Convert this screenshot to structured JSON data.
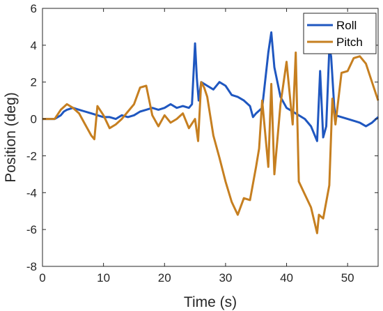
{
  "chart_data": {
    "type": "line",
    "title": "",
    "xlabel": "Time (s)",
    "ylabel": "Position (deg)",
    "xlim": [
      0,
      55
    ],
    "ylim": [
      -8,
      6
    ],
    "xticks": [
      0,
      10,
      20,
      30,
      40,
      50
    ],
    "yticks": [
      -8,
      -6,
      -4,
      -2,
      0,
      2,
      4,
      6
    ],
    "xtick_labels": [
      "0",
      "10",
      "20",
      "30",
      "40",
      "50"
    ],
    "ytick_labels": [
      "-8",
      "-6",
      "-4",
      "-2",
      "0",
      "2",
      "4",
      "6"
    ],
    "grid": false,
    "legend": "top-right",
    "series": [
      {
        "name": "Roll",
        "color": "#1f57c0",
        "x": [
          0,
          2,
          3,
          3.5,
          4,
          5,
          6,
          7,
          8,
          9,
          10,
          11,
          12,
          13,
          14,
          15,
          16,
          17,
          18,
          19,
          20,
          21,
          22,
          23,
          24,
          24.5,
          25,
          25.3,
          25.6,
          26,
          27,
          28,
          29,
          30,
          31,
          32,
          33,
          34,
          34.5,
          35,
          36,
          37,
          37.5,
          38,
          39,
          40,
          41,
          42,
          43,
          44,
          45,
          45.5,
          46,
          46.5,
          47,
          47.3,
          47.8,
          48,
          49,
          50,
          51,
          52,
          53,
          54,
          55
        ],
        "y": [
          0,
          0,
          0.2,
          0.4,
          0.5,
          0.6,
          0.5,
          0.4,
          0.3,
          0.2,
          0.1,
          0.1,
          0,
          0.2,
          0.1,
          0.2,
          0.4,
          0.5,
          0.6,
          0.5,
          0.6,
          0.8,
          0.6,
          0.7,
          0.6,
          0.8,
          4.1,
          2.2,
          1.0,
          2.0,
          1.8,
          1.6,
          2.0,
          1.8,
          1.3,
          1.2,
          1.0,
          0.7,
          0.1,
          0.3,
          0.6,
          3.6,
          4.7,
          2.8,
          1.2,
          0.6,
          0.4,
          0.2,
          0,
          -0.4,
          -1.2,
          2.6,
          -1.0,
          -0.4,
          3.8,
          3.4,
          0.7,
          0.2,
          0.1,
          0,
          -0.1,
          -0.2,
          -0.4,
          -0.2,
          0.1
        ]
      },
      {
        "name": "Pitch",
        "color": "#c67f20",
        "x": [
          0,
          2,
          3,
          4,
          5,
          6,
          7,
          8,
          8.5,
          9,
          10,
          11,
          12,
          13,
          14,
          15,
          16,
          17,
          18,
          19,
          20,
          21,
          22,
          23,
          24,
          25,
          25.5,
          26,
          26.5,
          27,
          28,
          29,
          30,
          31,
          32,
          33,
          34,
          35,
          35.5,
          36,
          37,
          37.5,
          38,
          39,
          40,
          41,
          41.5,
          42,
          43,
          44,
          45,
          45.3,
          46,
          47,
          47.5,
          48,
          49,
          50,
          51,
          52,
          53,
          54,
          55
        ],
        "y": [
          0,
          0,
          0.5,
          0.8,
          0.6,
          0.3,
          -0.3,
          -0.9,
          -1.1,
          0.7,
          0.2,
          -0.5,
          -0.3,
          0,
          0.4,
          0.8,
          1.7,
          1.8,
          0.2,
          -0.4,
          0.2,
          -0.2,
          0,
          0.3,
          -0.5,
          0,
          -1.2,
          2.0,
          1.7,
          1.2,
          -0.9,
          -2.1,
          -3.4,
          -4.5,
          -5.2,
          -4.3,
          -4.4,
          -2.6,
          -1.6,
          1.0,
          -2.6,
          1.9,
          -3.0,
          0.8,
          3.1,
          -0.3,
          3.6,
          -3.4,
          -4.1,
          -4.8,
          -6.2,
          -5.2,
          -5.4,
          -3.6,
          1.1,
          -0.3,
          2.5,
          2.6,
          3.3,
          3.4,
          3.0,
          2.0,
          1.0
        ]
      }
    ]
  }
}
